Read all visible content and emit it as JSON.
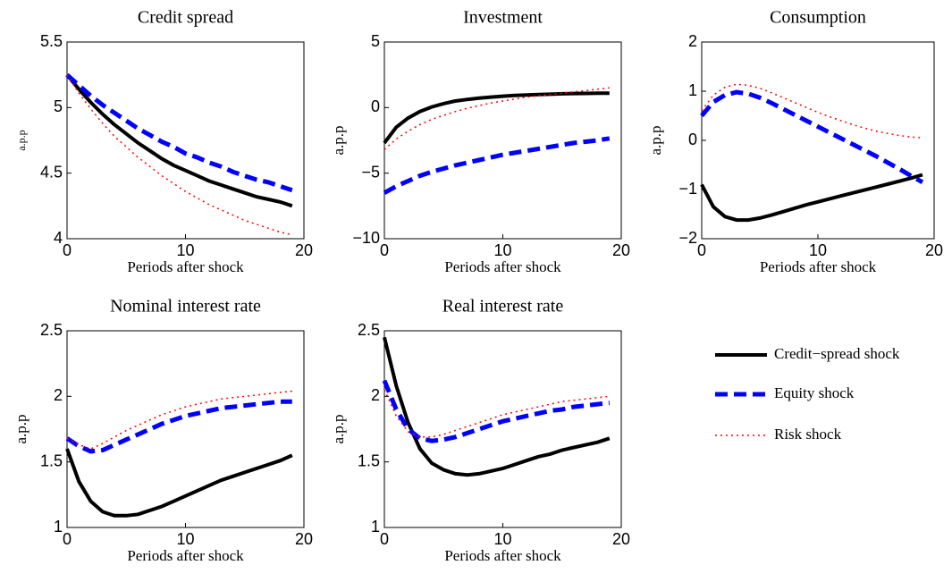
{
  "chart_data": [
    {
      "type": "line",
      "title": "Credit spread",
      "x_label": "Periods after shock",
      "y_label": "a.p.p",
      "x": [
        0,
        1,
        2,
        3,
        4,
        5,
        6,
        7,
        8,
        9,
        10,
        11,
        12,
        13,
        14,
        15,
        16,
        17,
        18,
        19
      ],
      "xlim": [
        0,
        20
      ],
      "xticks": [
        0,
        10,
        20
      ],
      "ylim": [
        4,
        5.5
      ],
      "yticks": [
        4,
        4.5,
        5,
        5.5
      ],
      "series": [
        {
          "name": "Credit−spread shock",
          "color": "#000000",
          "line_style": "solid",
          "values": [
            5.25,
            5.14,
            5.04,
            4.95,
            4.87,
            4.8,
            4.73,
            4.67,
            4.61,
            4.56,
            4.52,
            4.48,
            4.44,
            4.41,
            4.38,
            4.35,
            4.32,
            4.3,
            4.28,
            4.25
          ]
        },
        {
          "name": "Equity shock",
          "color": "#0000ff",
          "line_style": "dashed",
          "values": [
            5.25,
            5.17,
            5.09,
            5.02,
            4.96,
            4.9,
            4.84,
            4.79,
            4.74,
            4.7,
            4.65,
            4.62,
            4.58,
            4.55,
            4.51,
            4.48,
            4.45,
            4.43,
            4.4,
            4.37
          ]
        },
        {
          "name": "Risk shock",
          "color": "#ff0000",
          "line_style": "dotted",
          "values": [
            5.25,
            5.11,
            4.99,
            4.88,
            4.78,
            4.7,
            4.62,
            4.55,
            4.48,
            4.42,
            4.36,
            4.31,
            4.26,
            4.22,
            4.18,
            4.14,
            4.11,
            4.08,
            4.05,
            4.03
          ]
        }
      ]
    },
    {
      "type": "line",
      "title": "Investment",
      "x_label": "Periods after shock",
      "y_label": "a.p.p",
      "x": [
        0,
        1,
        2,
        3,
        4,
        5,
        6,
        7,
        8,
        9,
        10,
        11,
        12,
        13,
        14,
        15,
        16,
        17,
        18,
        19
      ],
      "xlim": [
        0,
        20
      ],
      "xticks": [
        0,
        10,
        20
      ],
      "ylim": [
        -10,
        5
      ],
      "yticks": [
        {
          "value": -10,
          "label": "−10"
        },
        {
          "value": -5,
          "label": "−5"
        },
        0,
        5
      ],
      "series": [
        {
          "name": "Credit−spread shock",
          "color": "#000000",
          "line_style": "solid",
          "values": [
            -2.7,
            -1.5,
            -0.8,
            -0.3,
            0.05,
            0.3,
            0.5,
            0.62,
            0.72,
            0.8,
            0.87,
            0.92,
            0.96,
            1.0,
            1.02,
            1.05,
            1.07,
            1.08,
            1.09,
            1.1
          ]
        },
        {
          "name": "Equity shock",
          "color": "#0000ff",
          "line_style": "dashed",
          "values": [
            -6.5,
            -6.0,
            -5.6,
            -5.2,
            -4.9,
            -4.65,
            -4.4,
            -4.2,
            -4.0,
            -3.8,
            -3.6,
            -3.45,
            -3.3,
            -3.15,
            -3.0,
            -2.85,
            -2.7,
            -2.6,
            -2.5,
            -2.35
          ]
        },
        {
          "name": "Risk shock",
          "color": "#ff0000",
          "line_style": "dotted",
          "values": [
            -3.2,
            -2.4,
            -1.8,
            -1.3,
            -0.9,
            -0.6,
            -0.3,
            -0.05,
            0.15,
            0.35,
            0.5,
            0.65,
            0.8,
            0.9,
            1.0,
            1.1,
            1.2,
            1.3,
            1.4,
            1.5
          ]
        }
      ]
    },
    {
      "type": "line",
      "title": "Consumption",
      "x_label": "Periods after shock",
      "y_label": "a.p.p",
      "x": [
        0,
        1,
        2,
        3,
        4,
        5,
        6,
        7,
        8,
        9,
        10,
        11,
        12,
        13,
        14,
        15,
        16,
        17,
        18,
        19
      ],
      "xlim": [
        0,
        20
      ],
      "xticks": [
        0,
        10,
        20
      ],
      "ylim": [
        -2,
        2
      ],
      "yticks": [
        {
          "value": -2,
          "label": "−2"
        },
        {
          "value": -1,
          "label": "−1"
        },
        0,
        1,
        2
      ],
      "series": [
        {
          "name": "Credit−spread shock",
          "color": "#000000",
          "line_style": "solid",
          "values": [
            -0.9,
            -1.35,
            -1.55,
            -1.62,
            -1.62,
            -1.58,
            -1.52,
            -1.45,
            -1.38,
            -1.31,
            -1.25,
            -1.19,
            -1.13,
            -1.07,
            -1.01,
            -0.95,
            -0.89,
            -0.83,
            -0.77,
            -0.7
          ]
        },
        {
          "name": "Equity shock",
          "color": "#0000ff",
          "line_style": "dashed",
          "values": [
            0.5,
            0.78,
            0.92,
            0.98,
            0.95,
            0.87,
            0.76,
            0.64,
            0.52,
            0.4,
            0.28,
            0.16,
            0.04,
            -0.08,
            -0.2,
            -0.32,
            -0.45,
            -0.58,
            -0.72,
            -0.85
          ]
        },
        {
          "name": "Risk shock",
          "color": "#ff0000",
          "line_style": "dotted",
          "values": [
            0.6,
            0.92,
            1.08,
            1.14,
            1.12,
            1.06,
            0.97,
            0.87,
            0.77,
            0.67,
            0.57,
            0.48,
            0.4,
            0.32,
            0.25,
            0.19,
            0.14,
            0.1,
            0.07,
            0.05
          ]
        }
      ]
    },
    {
      "type": "line",
      "title": "Nominal interest rate",
      "x_label": "Periods after shock",
      "y_label": "a.p.p",
      "x": [
        0,
        1,
        2,
        3,
        4,
        5,
        6,
        7,
        8,
        9,
        10,
        11,
        12,
        13,
        14,
        15,
        16,
        17,
        18,
        19
      ],
      "xlim": [
        0,
        20
      ],
      "xticks": [
        0,
        10,
        20
      ],
      "ylim": [
        1,
        2.5
      ],
      "yticks": [
        1,
        1.5,
        2,
        2.5
      ],
      "series": [
        {
          "name": "Credit−spread shock",
          "color": "#000000",
          "line_style": "solid",
          "values": [
            1.6,
            1.35,
            1.2,
            1.12,
            1.09,
            1.09,
            1.1,
            1.13,
            1.16,
            1.2,
            1.24,
            1.28,
            1.32,
            1.36,
            1.39,
            1.42,
            1.45,
            1.48,
            1.51,
            1.55
          ]
        },
        {
          "name": "Equity shock",
          "color": "#0000ff",
          "line_style": "dashed",
          "values": [
            1.68,
            1.62,
            1.58,
            1.59,
            1.63,
            1.67,
            1.71,
            1.75,
            1.79,
            1.82,
            1.85,
            1.87,
            1.89,
            1.91,
            1.92,
            1.93,
            1.94,
            1.95,
            1.96,
            1.96
          ]
        },
        {
          "name": "Risk shock",
          "color": "#ff0000",
          "line_style": "dotted",
          "values": [
            1.68,
            1.63,
            1.6,
            1.64,
            1.69,
            1.74,
            1.78,
            1.82,
            1.86,
            1.89,
            1.92,
            1.94,
            1.96,
            1.98,
            1.99,
            2.0,
            2.01,
            2.02,
            2.03,
            2.04
          ]
        }
      ]
    },
    {
      "type": "line",
      "title": "Real interest rate",
      "x_label": "Periods after shock",
      "y_label": "a.p.p",
      "x": [
        0,
        1,
        2,
        3,
        4,
        5,
        6,
        7,
        8,
        9,
        10,
        11,
        12,
        13,
        14,
        15,
        16,
        17,
        18,
        19
      ],
      "xlim": [
        0,
        20
      ],
      "xticks": [
        0,
        10,
        20
      ],
      "ylim": [
        1,
        2.5
      ],
      "yticks": [
        1,
        1.5,
        2,
        2.5
      ],
      "series": [
        {
          "name": "Credit−spread shock",
          "color": "#000000",
          "line_style": "solid",
          "values": [
            2.45,
            2.08,
            1.8,
            1.6,
            1.49,
            1.44,
            1.41,
            1.4,
            1.41,
            1.43,
            1.45,
            1.48,
            1.51,
            1.54,
            1.56,
            1.59,
            1.61,
            1.63,
            1.65,
            1.68
          ]
        },
        {
          "name": "Equity shock",
          "color": "#0000ff",
          "line_style": "dashed",
          "values": [
            2.12,
            1.9,
            1.75,
            1.68,
            1.66,
            1.67,
            1.69,
            1.72,
            1.75,
            1.78,
            1.81,
            1.83,
            1.85,
            1.87,
            1.89,
            1.9,
            1.92,
            1.93,
            1.94,
            1.95
          ]
        },
        {
          "name": "Risk shock",
          "color": "#ff0000",
          "line_style": "dotted",
          "values": [
            2.05,
            1.85,
            1.73,
            1.69,
            1.69,
            1.71,
            1.74,
            1.77,
            1.8,
            1.83,
            1.86,
            1.88,
            1.9,
            1.92,
            1.94,
            1.96,
            1.97,
            1.98,
            1.99,
            2.0
          ]
        }
      ]
    }
  ]
}
